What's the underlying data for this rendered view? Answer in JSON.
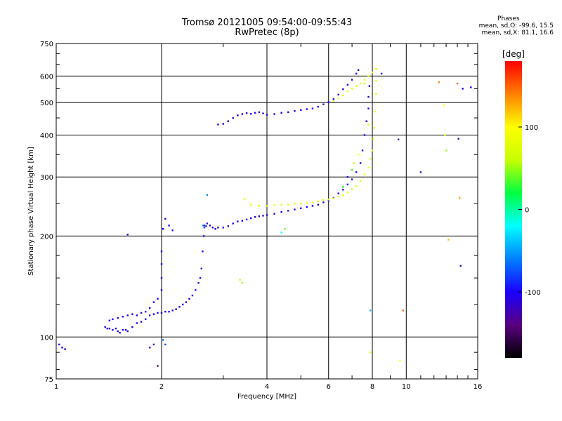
{
  "header": {
    "title": "Tromsø 20121005 09:54:00-09:55:43",
    "subtitle": "RwPretec (8p)"
  },
  "stats": {
    "title": "Phases",
    "line_o": "mean, sd,O: -99.6, 15.5",
    "line_x": "mean, sd,X: 81.1, 16.6"
  },
  "chart_data": {
    "type": "scatter",
    "xlabel": "Frequency [MHz]",
    "ylabel": "Stationary phase Virtual Height [km]",
    "xscale": "log",
    "yscale": "log",
    "xlim": [
      1,
      16
    ],
    "ylim": [
      75,
      750
    ],
    "grid": true,
    "x_ticks": [
      1,
      2,
      4,
      6,
      8,
      10,
      16
    ],
    "y_ticks": [
      75,
      100,
      200,
      300,
      400,
      500,
      600,
      750
    ],
    "colorbar": {
      "label": "[deg]",
      "min": -180,
      "max": 180,
      "ticks": [
        100,
        0,
        -100
      ],
      "colors": [
        "#000000",
        "#5a0080",
        "#1a00ff",
        "#0080ff",
        "#00ffff",
        "#00ff40",
        "#c8ff00",
        "#ffff00",
        "#ff8000",
        "#ff0000"
      ]
    },
    "series": [
      {
        "x": [
          1.02,
          1.04,
          1.06
        ],
        "y": [
          95,
          93,
          92
        ],
        "phase": [
          -100,
          -100,
          -100
        ]
      },
      {
        "x": [
          1.38,
          1.4,
          1.42,
          1.45,
          1.48,
          1.5,
          1.52,
          1.55,
          1.58,
          1.6,
          1.65,
          1.7,
          1.75,
          1.8,
          1.85,
          1.9,
          1.95,
          2.0,
          2.05,
          2.1,
          2.15,
          2.2,
          2.25,
          2.3,
          2.35,
          2.4,
          2.45,
          2.5,
          2.55,
          2.58,
          2.6,
          2.62,
          2.64,
          2.65
        ],
        "y": [
          107,
          106,
          106,
          105,
          106,
          104,
          103,
          105,
          105,
          104,
          107,
          110,
          111,
          113,
          116,
          117,
          118,
          118,
          119,
          119,
          120,
          121,
          123,
          125,
          127,
          130,
          133,
          138,
          145,
          150,
          160,
          180,
          200,
          215
        ],
        "phase": [
          -110,
          -100,
          -100,
          -105,
          -110,
          -100,
          -105,
          -100,
          -95,
          -110,
          -100,
          -105,
          -110,
          -100,
          -100,
          -105,
          -100,
          -100,
          -110,
          -100,
          -105,
          -100,
          -110,
          -100,
          -105,
          -100,
          -95,
          -100,
          -110,
          -100,
          -105,
          -100,
          -105,
          -95
        ]
      },
      {
        "x": [
          1.42,
          1.45,
          1.5,
          1.55,
          1.6,
          1.65,
          1.7,
          1.75,
          1.8,
          1.85,
          1.9,
          1.95,
          2.0,
          2.0,
          2.0,
          2.0,
          2.02,
          2.05,
          2.1,
          2.15
        ],
        "y": [
          112,
          113,
          114,
          115,
          116,
          117,
          116,
          118,
          119,
          122,
          127,
          130,
          138,
          150,
          165,
          180,
          210,
          225,
          215,
          208
        ],
        "phase": [
          -100,
          -105,
          -110,
          -100,
          -100,
          -105,
          -100,
          -110,
          -100,
          -105,
          -100,
          -105,
          -100,
          -110,
          -100,
          -105,
          -100,
          -110,
          -100,
          -95
        ]
      },
      {
        "x": [
          2.63,
          2.65,
          2.68,
          2.7,
          2.75,
          2.8,
          2.85,
          2.9,
          3.0,
          3.1,
          3.2,
          3.3,
          3.4,
          3.5,
          3.6,
          3.7,
          3.8,
          3.9,
          4.0,
          4.2,
          4.4,
          4.6,
          4.8,
          5.0,
          5.2,
          5.4,
          5.6,
          5.8,
          6.0,
          6.2,
          6.4,
          6.6,
          6.8,
          7.0,
          7.2,
          7.4,
          7.5,
          7.6,
          7.7,
          7.8,
          7.8,
          7.85
        ],
        "y": [
          215,
          212,
          214,
          218,
          215,
          212,
          210,
          212,
          212,
          214,
          218,
          221,
          222,
          224,
          226,
          228,
          229,
          230,
          231,
          233,
          236,
          238,
          240,
          242,
          244,
          246,
          248,
          252,
          255,
          260,
          268,
          275,
          285,
          295,
          310,
          330,
          360,
          400,
          440,
          480,
          520,
          560
        ],
        "phase": [
          -60,
          -80,
          -90,
          -100,
          -110,
          -105,
          -100,
          -110,
          -100,
          -105,
          -100,
          -110,
          -100,
          -105,
          -100,
          -110,
          -100,
          -105,
          -100,
          -110,
          -100,
          -105,
          -100,
          -110,
          -100,
          -105,
          -100,
          -110,
          -100,
          -105,
          -100,
          -110,
          -100,
          -105,
          -100,
          -110,
          -100,
          -105,
          -100,
          -110,
          -100,
          -105
        ]
      },
      {
        "x": [
          3.45,
          3.6,
          3.8,
          4.0,
          4.2,
          4.4,
          4.6,
          4.8,
          5.0,
          5.2,
          5.4,
          5.6,
          5.8,
          6.0,
          6.2,
          6.4,
          6.6,
          6.8,
          7.0,
          7.2,
          7.4,
          7.6,
          7.8,
          7.9,
          8.0,
          8.05,
          8.1,
          8.15,
          8.2,
          8.2,
          8.22
        ],
        "y": [
          258,
          248,
          246,
          246,
          247,
          248,
          248,
          250,
          250,
          251,
          252,
          254,
          256,
          257,
          259,
          262,
          265,
          270,
          276,
          282,
          292,
          305,
          320,
          340,
          360,
          390,
          420,
          470,
          530,
          580,
          630
        ],
        "phase": [
          85,
          90,
          80,
          75,
          85,
          80,
          90,
          75,
          80,
          85,
          90,
          80,
          75,
          85,
          80,
          90,
          85,
          80,
          75,
          85,
          80,
          90,
          85,
          75,
          80,
          90,
          85,
          80,
          75,
          85,
          80
        ]
      },
      {
        "x": [
          2.9,
          3.0,
          3.1,
          3.2,
          3.3,
          3.4,
          3.5,
          3.6,
          3.7,
          3.8,
          3.9,
          4.0,
          4.2,
          4.4,
          4.6,
          4.8,
          5.0,
          5.2,
          5.4,
          5.6,
          5.8,
          6.0,
          6.2,
          6.4,
          6.6,
          6.8,
          7.0,
          7.2,
          7.3
        ],
        "y": [
          430,
          432,
          440,
          450,
          458,
          462,
          465,
          463,
          466,
          468,
          464,
          460,
          462,
          466,
          468,
          472,
          475,
          478,
          480,
          486,
          494,
          502,
          512,
          528,
          548,
          565,
          585,
          610,
          625
        ],
        "phase": [
          -110,
          -100,
          -105,
          -110,
          -100,
          -105,
          -110,
          -100,
          -105,
          -100,
          -110,
          -100,
          -105,
          -110,
          -100,
          -105,
          -100,
          -110,
          -100,
          -105,
          -110,
          -100,
          -105,
          -110,
          -100,
          -105,
          -110,
          -100,
          -105
        ]
      },
      {
        "x": [
          6.2,
          6.4,
          6.6,
          6.8,
          7.0,
          7.2,
          7.4,
          7.6,
          7.8,
          8.0,
          8.2
        ],
        "y": [
          505,
          515,
          525,
          540,
          550,
          560,
          570,
          585,
          600,
          615,
          630
        ],
        "phase": [
          80,
          85,
          75,
          90,
          80,
          85,
          75,
          80,
          90,
          85,
          80
        ]
      },
      {
        "x": [
          2.7,
          3.35,
          3.4,
          4.4,
          4.5,
          6.6,
          6.8,
          7.0,
          7.1,
          7.3,
          7.6,
          7.8,
          7.9,
          7.9,
          8.5,
          9.5,
          9.6,
          9.8,
          11.0,
          12.4,
          12.8,
          12.9,
          13.0,
          13.2,
          14.0,
          14.1,
          14.2,
          14.3,
          14.5,
          15.3,
          1.85,
          1.9,
          1.95,
          2.02,
          2.05,
          1.6
        ],
        "y": [
          265,
          148,
          145,
          205,
          210,
          280,
          300,
          315,
          330,
          350,
          570,
          430,
          120,
          90,
          610,
          388,
          85,
          120,
          310,
          575,
          490,
          400,
          360,
          195,
          570,
          390,
          260,
          163,
          550,
          555,
          93,
          95,
          82,
          98,
          95,
          202
        ],
        "phase": [
          -60,
          60,
          50,
          -20,
          40,
          20,
          -110,
          30,
          60,
          100,
          60,
          70,
          -40,
          80,
          -110,
          -120,
          100,
          150,
          -120,
          140,
          100,
          80,
          50,
          120,
          150,
          -120,
          130,
          -110,
          -100,
          -105,
          -100,
          -120,
          -150,
          -60,
          -80,
          -110
        ]
      }
    ]
  }
}
